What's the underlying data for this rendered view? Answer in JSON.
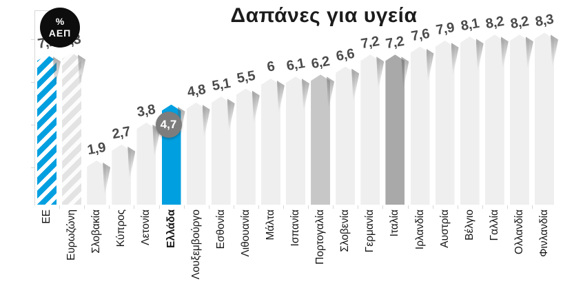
{
  "title": "Δαπάνες για υγεία",
  "badge": {
    "line1": "%",
    "line2": "ΑΕΠ"
  },
  "chart_data": {
    "type": "bar",
    "title": "Δαπάνες για υγεία",
    "unit": "% ΑΕΠ",
    "categories": [
      "ΕΕ",
      "Ευρωζώνη",
      "Σλοβακία",
      "Κύπρος",
      "Λετονία",
      "Ελλάδα",
      "Λουξεμβούργο",
      "Εσθονία",
      "Λιθουανία",
      "Μάλτα",
      "Ισπανία",
      "Πορτογαλία",
      "Σλοβενία",
      "Γερμανία",
      "Ιταλία",
      "Ιρλανδία",
      "Αυστρία",
      "Βέλγιο",
      "Γαλλία",
      "Ολλανδία",
      "Φινλανδία"
    ],
    "values": [
      7.2,
      7.3,
      1.9,
      2.7,
      3.8,
      4.7,
      4.8,
      5.1,
      5.5,
      6,
      6.1,
      6.2,
      6.6,
      7.2,
      7.2,
      7.6,
      7.9,
      8.1,
      8.2,
      8.2,
      8.3
    ],
    "value_labels": [
      "7,2",
      "7,3",
      "1,9",
      "2,7",
      "3,8",
      "4,7",
      "4,8",
      "5,1",
      "5,5",
      "6",
      "6,1",
      "6,2",
      "6,6",
      "7,2",
      "7,2",
      "7,6",
      "7,9",
      "8,1",
      "8,2",
      "8,2",
      "8,3"
    ],
    "bar_styles": [
      "hatch-blue",
      "hatch-gray",
      "default",
      "default",
      "default",
      "blue",
      "default",
      "default",
      "default",
      "default",
      "default",
      "gray-medium",
      "default",
      "default",
      "gray-dark",
      "default",
      "default",
      "default",
      "default",
      "default",
      "default"
    ],
    "bold_categories": [
      "Ελλάδα"
    ],
    "callout": {
      "category": "Ελλάδα",
      "index": 5,
      "label": "4,7"
    },
    "ylim": [
      0,
      9.7
    ],
    "grid": false,
    "legend": false,
    "axis": "left-only"
  },
  "colors": {
    "blue": "#009fe0",
    "bar_default": "#efefef",
    "bar_gray_medium": "#c7c7c7",
    "bar_gray_dark": "#a9a9a9",
    "hatch_gray": "#e3e3e3",
    "callout_circle": "#7d7d7d",
    "callout_text": "#ffffff",
    "value_text": "#4a4a4a",
    "title_text": "#1c1c1c",
    "axis_line": "#d6d6d6"
  }
}
